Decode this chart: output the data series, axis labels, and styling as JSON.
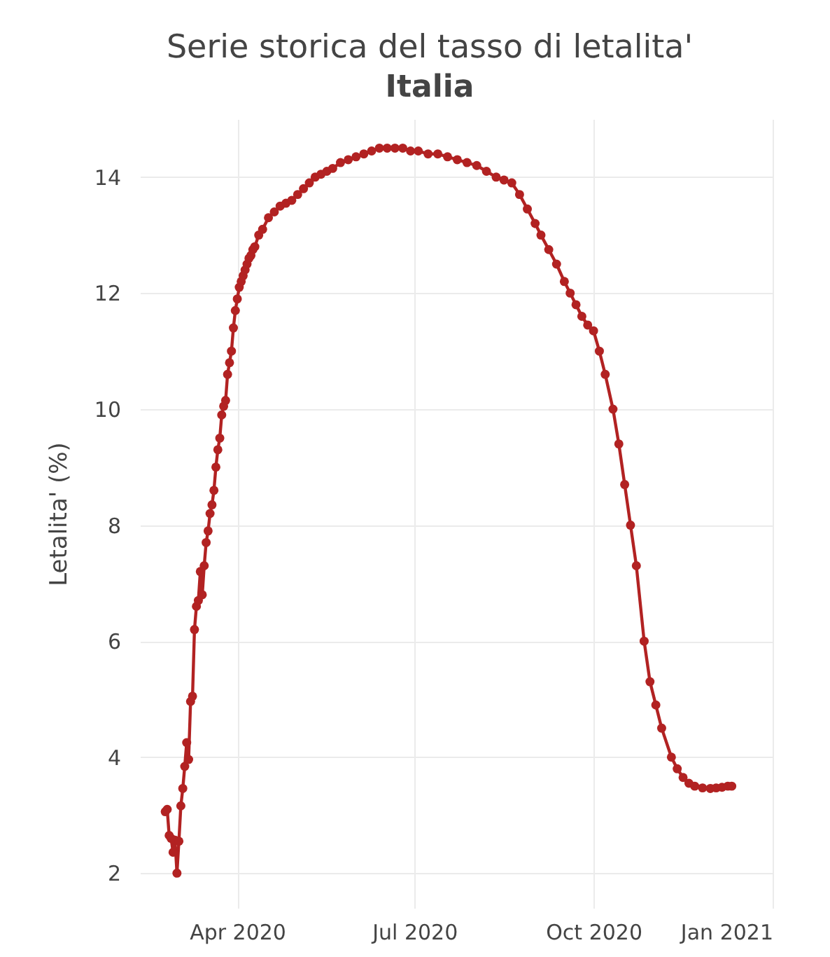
{
  "chart_data": {
    "type": "line",
    "title": "Serie storica del tasso di letalita'",
    "subtitle": "Italia",
    "ylabel": "Letalita' (%)",
    "x": [
      "2020-02-24",
      "2020-02-25",
      "2020-02-26",
      "2020-02-27",
      "2020-02-28",
      "2020-02-29",
      "2020-03-01",
      "2020-03-02",
      "2020-03-03",
      "2020-03-04",
      "2020-03-05",
      "2020-03-06",
      "2020-03-07",
      "2020-03-08",
      "2020-03-09",
      "2020-03-10",
      "2020-03-11",
      "2020-03-12",
      "2020-03-13",
      "2020-03-14",
      "2020-03-15",
      "2020-03-16",
      "2020-03-17",
      "2020-03-18",
      "2020-03-19",
      "2020-03-20",
      "2020-03-21",
      "2020-03-22",
      "2020-03-23",
      "2020-03-24",
      "2020-03-25",
      "2020-03-26",
      "2020-03-27",
      "2020-03-28",
      "2020-03-29",
      "2020-03-30",
      "2020-03-31",
      "2020-04-01",
      "2020-04-02",
      "2020-04-03",
      "2020-04-04",
      "2020-04-05",
      "2020-04-06",
      "2020-04-07",
      "2020-04-08",
      "2020-04-09",
      "2020-04-10",
      "2020-04-12",
      "2020-04-14",
      "2020-04-17",
      "2020-04-20",
      "2020-04-23",
      "2020-04-26",
      "2020-04-29",
      "2020-05-02",
      "2020-05-05",
      "2020-05-08",
      "2020-05-11",
      "2020-05-14",
      "2020-05-17",
      "2020-05-20",
      "2020-05-24",
      "2020-05-28",
      "2020-06-01",
      "2020-06-05",
      "2020-06-09",
      "2020-06-13",
      "2020-06-17",
      "2020-06-21",
      "2020-06-25",
      "2020-06-29",
      "2020-07-03",
      "2020-07-08",
      "2020-07-13",
      "2020-07-18",
      "2020-07-23",
      "2020-07-28",
      "2020-08-02",
      "2020-08-07",
      "2020-08-12",
      "2020-08-16",
      "2020-08-20",
      "2020-08-24",
      "2020-08-28",
      "2020-09-01",
      "2020-09-04",
      "2020-09-08",
      "2020-09-12",
      "2020-09-16",
      "2020-09-19",
      "2020-09-22",
      "2020-09-25",
      "2020-09-28",
      "2020-10-01",
      "2020-10-04",
      "2020-10-07",
      "2020-10-11",
      "2020-10-14",
      "2020-10-17",
      "2020-10-20",
      "2020-10-23",
      "2020-10-27",
      "2020-10-30",
      "2020-11-02",
      "2020-11-05",
      "2020-11-10",
      "2020-11-13",
      "2020-11-16",
      "2020-11-19",
      "2020-11-22",
      "2020-11-26",
      "2020-11-30",
      "2020-12-03",
      "2020-12-06",
      "2020-12-09",
      "2020-12-11"
    ],
    "series": [
      {
        "color": "#b22222",
        "values": [
          3.06,
          3.1,
          2.65,
          2.6,
          2.36,
          2.57,
          2.0,
          2.55,
          3.16,
          3.46,
          3.84,
          4.25,
          3.96,
          4.96,
          5.05,
          6.2,
          6.6,
          6.7,
          7.2,
          6.8,
          7.3,
          7.7,
          7.9,
          8.2,
          8.35,
          8.6,
          9.0,
          9.3,
          9.5,
          9.9,
          10.05,
          10.15,
          10.6,
          10.8,
          11.0,
          11.4,
          11.7,
          11.9,
          12.1,
          12.2,
          12.3,
          12.4,
          12.5,
          12.6,
          12.65,
          12.75,
          12.8,
          13.0,
          13.1,
          13.3,
          13.4,
          13.5,
          13.55,
          13.6,
          13.7,
          13.8,
          13.9,
          14.0,
          14.05,
          14.1,
          14.15,
          14.25,
          14.3,
          14.35,
          14.4,
          14.45,
          14.5,
          14.5,
          14.5,
          14.5,
          14.45,
          14.45,
          14.4,
          14.4,
          14.35,
          14.3,
          14.25,
          14.2,
          14.1,
          14.0,
          13.95,
          13.9,
          13.7,
          13.45,
          13.2,
          13.0,
          12.75,
          12.5,
          12.2,
          12.0,
          11.8,
          11.6,
          11.45,
          11.35,
          11.0,
          10.6,
          10.0,
          9.4,
          8.7,
          8.0,
          7.3,
          6.0,
          5.3,
          4.9,
          4.5,
          4.0,
          3.8,
          3.65,
          3.55,
          3.5,
          3.47,
          3.46,
          3.47,
          3.48,
          3.5,
          3.5
        ]
      }
    ],
    "xlim": [
      "2020-02-11",
      "2021-01-01"
    ],
    "xticks": [
      {
        "value": "2020-04-01",
        "label": "Apr 2020"
      },
      {
        "value": "2020-07-01",
        "label": "Jul 2020"
      },
      {
        "value": "2020-10-01",
        "label": "Oct 2020"
      },
      {
        "value": "2021-01-01",
        "label": "Jan 2021"
      }
    ],
    "ylim": [
      1.4,
      15
    ],
    "yticks": [
      2,
      4,
      6,
      8,
      10,
      12,
      14
    ],
    "grid": true,
    "marker": "circle",
    "line_style": "solid"
  }
}
